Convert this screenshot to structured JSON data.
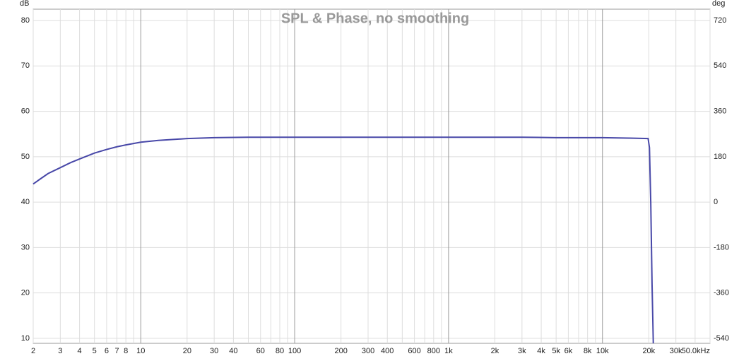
{
  "chart_data": {
    "type": "line",
    "title": "SPL & Phase, no smoothing",
    "y_unit": "dB",
    "y2_unit": "deg",
    "x": [
      2,
      2.2,
      2.5,
      3,
      3.5,
      4,
      5,
      6,
      7,
      8,
      10,
      13,
      20,
      30,
      50,
      100,
      300,
      1000,
      3000,
      5000,
      10000,
      15000,
      19800,
      20200,
      20600,
      21000,
      21400
    ],
    "series": [
      {
        "name": "SPL",
        "color": "#4848a8",
        "values": [
          44,
          45,
          46.3,
          47.6,
          48.7,
          49.5,
          50.8,
          51.6,
          52.2,
          52.6,
          53.2,
          53.6,
          54,
          54.2,
          54.3,
          54.3,
          54.3,
          54.3,
          54.3,
          54.2,
          54.2,
          54.1,
          54.0,
          52,
          40,
          22,
          8.9
        ]
      }
    ],
    "xlim": [
      2,
      50000
    ],
    "xscale": "log",
    "xticks": [
      2,
      3,
      4,
      5,
      6,
      7,
      8,
      10,
      20,
      30,
      40,
      60,
      80,
      100,
      200,
      300,
      400,
      600,
      800,
      {
        "value": 1000,
        "label": "1k"
      },
      {
        "value": 2000,
        "label": "2k"
      },
      {
        "value": 3000,
        "label": "3k"
      },
      {
        "value": 4000,
        "label": "4k"
      },
      {
        "value": 5000,
        "label": "5k"
      },
      {
        "value": 6000,
        "label": "6k"
      },
      {
        "value": 8000,
        "label": "8k"
      },
      {
        "value": 10000,
        "label": "10k"
      },
      {
        "value": 20000,
        "label": "20k"
      },
      {
        "value": 30000,
        "label": "30k"
      },
      {
        "value": 50000,
        "label": "50.0kHz"
      }
    ],
    "x_minor_grid": [
      9,
      50,
      70,
      90,
      500,
      700,
      900,
      7000,
      9000,
      40000
    ],
    "ylim": [
      8.9,
      82.5
    ],
    "yticks": [
      10,
      20,
      30,
      40,
      50,
      60,
      70,
      80
    ],
    "y2lim": [
      -559.6,
      764.8
    ],
    "y2ticks": [
      -540,
      -360,
      -180,
      0,
      180,
      360,
      540,
      720
    ],
    "grid": true
  }
}
